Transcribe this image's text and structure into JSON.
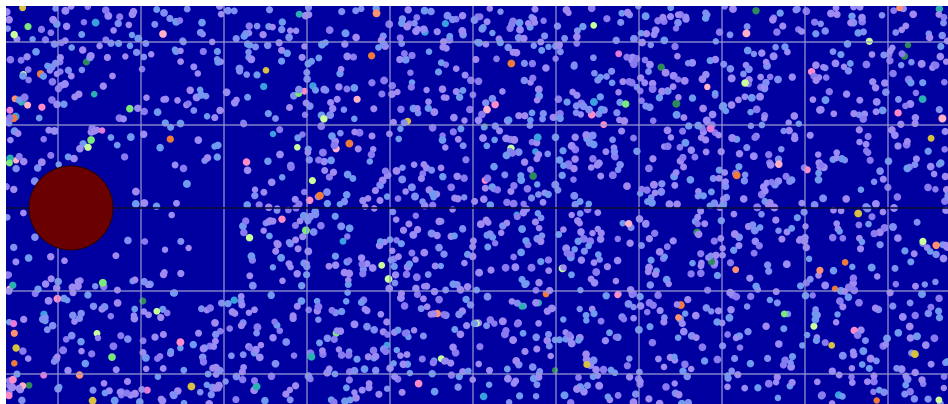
{
  "simulation": {
    "type": "particle-flow-around-cylinder",
    "colors": {
      "background": "#0000a0",
      "grid": "#9a9ad0",
      "centerline": "#000030",
      "obstacle": "#6b0000",
      "obstacle_outline": "#2a0000",
      "particle_base": [
        "#8a7af0",
        "#9b8bf5",
        "#7f8ff2",
        "#a08af0",
        "#6f9af0"
      ],
      "particle_accents": [
        "#3aa0e0",
        "#2ab0b0",
        "#ff8ac8",
        "#e67ad8",
        "#ff9070",
        "#f07a3a",
        "#c8ff9a",
        "#7ae87a",
        "#d8c040",
        "#2e8a5a",
        "#ffb0c8"
      ]
    },
    "grid": {
      "columns": 11,
      "rows": 5
    },
    "particle_count": 2100,
    "obstacle": {
      "shape": "circle"
    }
  }
}
